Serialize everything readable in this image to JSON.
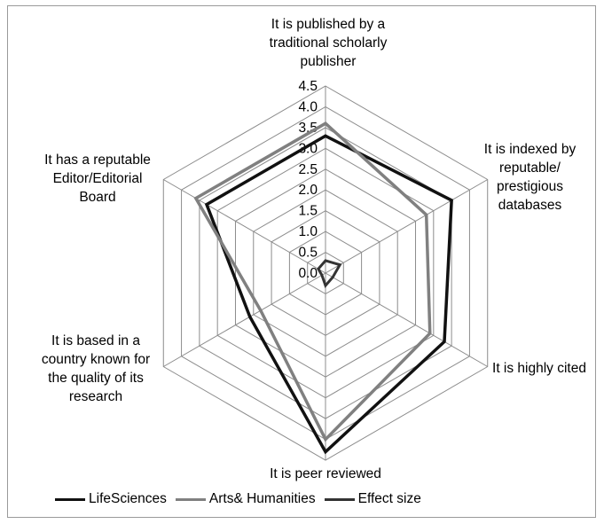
{
  "chart_data": {
    "type": "radar",
    "categories": [
      "It is published by a traditional scholarly publisher",
      "It is indexed by reputable/ prestigious databases",
      "It is highly cited",
      "It is peer reviewed",
      "It is based in a country known for the quality of its research",
      "It has a reputable Editor/Editorial Board"
    ],
    "category_lines": [
      [
        "It is published by a",
        "traditional scholarly",
        "publisher"
      ],
      [
        "It is indexed by",
        "reputable/",
        "prestigious",
        "databases"
      ],
      [
        "It is highly cited"
      ],
      [
        "It is peer reviewed"
      ],
      [
        "It is based in a",
        "country known for",
        "the quality of its",
        "research"
      ],
      [
        "It has a reputable",
        "Editor/Editorial",
        "Board"
      ]
    ],
    "rlim": [
      0,
      4.5
    ],
    "ticks": [
      "0.0",
      "0.5",
      "1.0",
      "1.5",
      "2.0",
      "2.5",
      "3.0",
      "3.5",
      "4.0",
      "4.5"
    ],
    "grid": true,
    "legend_position": "bottom",
    "series": [
      {
        "name": "LifeSciences",
        "color": "#111111",
        "values": [
          3.3,
          3.5,
          3.3,
          4.3,
          2.1,
          3.3
        ]
      },
      {
        "name": "Arts& Humanities",
        "color": "#808080",
        "values": [
          3.6,
          2.8,
          2.9,
          4.0,
          1.8,
          3.6
        ]
      },
      {
        "name": "Effect size",
        "color": "#333333",
        "values": [
          0.3,
          0.4,
          0.2,
          0.3,
          0.1,
          0.2
        ]
      }
    ]
  }
}
